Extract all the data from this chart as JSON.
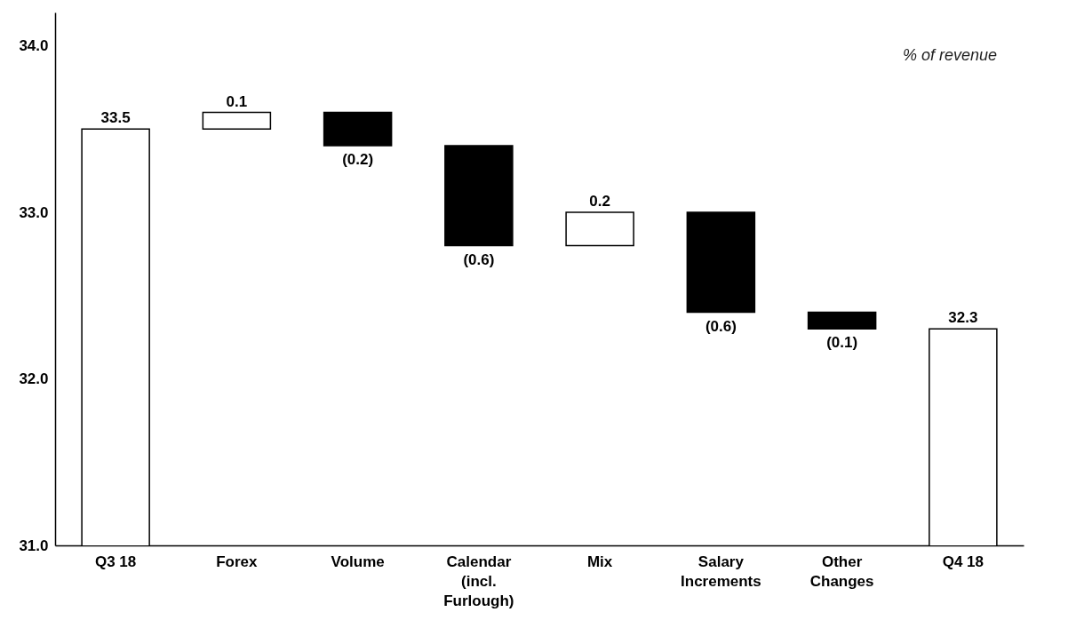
{
  "chart_data": {
    "type": "bar",
    "categories": [
      "Q3 18",
      "Forex",
      "Volume",
      "Calendar (incl. Furlough)",
      "Mix",
      "Salary Increments",
      "Other Changes",
      "Q4 18"
    ],
    "values": [
      33.5,
      0.1,
      -0.2,
      -0.6,
      0.2,
      -0.6,
      -0.1,
      32.3
    ],
    "base": [
      null,
      33.5,
      33.6,
      33.4,
      32.8,
      33.0,
      32.4,
      null
    ],
    "colors": [
      "#ffffff",
      "#ffffff",
      "#000000",
      "#000000",
      "#ffffff",
      "#000000",
      "#000000",
      "#ffffff"
    ],
    "value_labels": [
      "33.5",
      "0.1",
      "(0.2)",
      "(0.6)",
      "0.2",
      "(0.6)",
      "(0.1)",
      "32.3"
    ],
    "ylim": [
      31,
      34.2
    ],
    "yticks": [
      {
        "value": 31,
        "label": "31.0"
      },
      {
        "value": 32,
        "label": "32.0"
      },
      {
        "value": 33,
        "label": "33.0"
      },
      {
        "value": 34,
        "label": "34.0"
      }
    ],
    "grid": false,
    "annotations": [
      "% of revenue"
    ]
  }
}
